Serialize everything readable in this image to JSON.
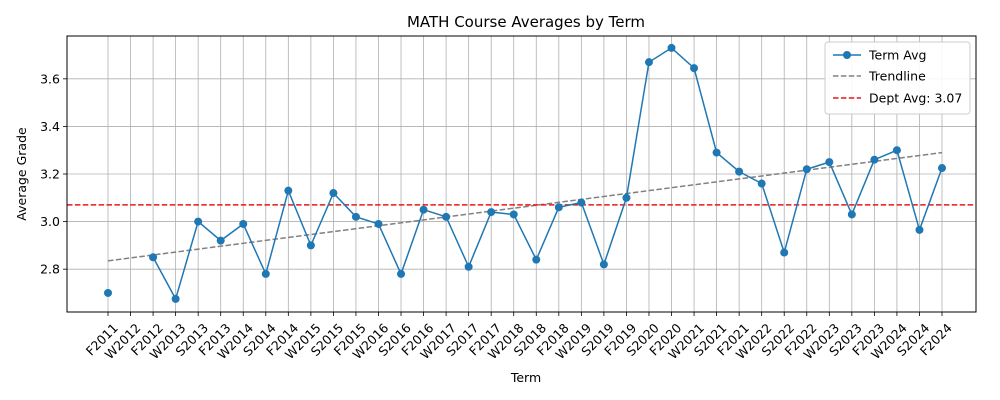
{
  "chart_data": {
    "type": "line",
    "title": "MATH Course Averages by Term",
    "xlabel": "Term",
    "ylabel": "Average Grade",
    "categories": [
      "F2011",
      "W2012",
      "F2012",
      "W2013",
      "S2013",
      "F2013",
      "W2014",
      "S2014",
      "F2014",
      "W2015",
      "S2015",
      "F2015",
      "W2016",
      "S2016",
      "F2016",
      "W2017",
      "S2017",
      "F2017",
      "W2018",
      "S2018",
      "F2018",
      "W2019",
      "S2019",
      "F2019",
      "S2020",
      "F2020",
      "W2021",
      "S2021",
      "F2021",
      "W2022",
      "S2022",
      "F2022",
      "W2023",
      "S2023",
      "F2023",
      "W2024",
      "S2024",
      "F2024"
    ],
    "series": [
      {
        "name": "Term Avg",
        "color": "#1f77b4",
        "values": [
          2.7,
          null,
          2.85,
          2.675,
          3.0,
          2.92,
          2.99,
          2.78,
          3.13,
          2.9,
          3.12,
          3.02,
          2.99,
          2.78,
          3.05,
          3.02,
          2.81,
          3.04,
          3.03,
          2.84,
          3.06,
          3.08,
          2.82,
          3.1,
          3.67,
          3.73,
          3.645,
          3.29,
          3.21,
          3.16,
          2.87,
          3.22,
          3.25,
          3.03,
          3.26,
          3.3,
          2.965,
          3.225
        ]
      },
      {
        "name": "Trendline",
        "color": "#808080",
        "start": 2.835,
        "end": 3.29
      },
      {
        "name": "Dept Avg: 3.07",
        "color": "#e31a1c",
        "value": 3.07
      }
    ],
    "ylim": [
      2.62,
      3.78
    ],
    "yticks": [
      "2.8",
      "3.0",
      "3.2",
      "3.4",
      "3.6"
    ],
    "grid": true,
    "legend_position": "top-right"
  }
}
